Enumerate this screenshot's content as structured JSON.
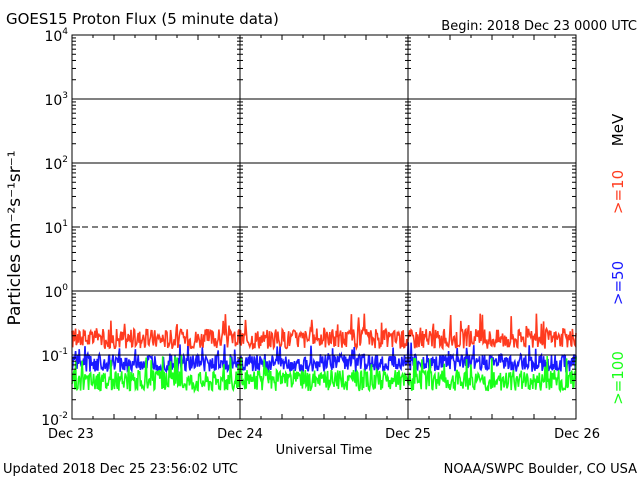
{
  "header": {
    "title": "GOES15 Proton Flux (5 minute data)",
    "begin": "Begin: 2018 Dec 23 0000 UTC"
  },
  "footer": {
    "updated": "Updated 2018 Dec 25 23:56:02 UTC",
    "credit": "NOAA/SWPC Boulder, CO USA"
  },
  "chart_data": {
    "type": "line",
    "title": "GOES15 Proton Flux (5 minute data)",
    "xlabel": "Universal Time",
    "ylabel": "Particles cm⁻²s⁻¹sr⁻¹",
    "yscale": "log",
    "ylim": [
      0.01,
      10000
    ],
    "y_ticks": [
      0.01,
      0.1,
      1,
      10,
      100,
      1000,
      10000
    ],
    "y_tick_labels": [
      {
        "base": "10",
        "exp": "-2"
      },
      {
        "base": "10",
        "exp": "-1"
      },
      {
        "base": "10",
        "exp": "0"
      },
      {
        "base": "10",
        "exp": "1"
      },
      {
        "base": "10",
        "exp": "2"
      },
      {
        "base": "10",
        "exp": "3"
      },
      {
        "base": "10",
        "exp": "4"
      }
    ],
    "x_tick_labels": [
      "Dec 23",
      "Dec 24",
      "Dec 25",
      "Dec 26"
    ],
    "xlim": [
      "2018-12-23 00:00",
      "2018-12-26 00:00"
    ],
    "grid": {
      "solid_levels": [
        1,
        100,
        1000
      ],
      "dashed_levels": [
        10
      ],
      "threshold_lines": [
        0.1
      ]
    },
    "unit_label": "MeV",
    "series": [
      {
        "name": ">=10",
        "color": "#ff3b1f",
        "median": 0.18,
        "min": 0.12,
        "max": 0.45
      },
      {
        "name": ">=50",
        "color": "#1a1aff",
        "median": 0.075,
        "min": 0.05,
        "max": 0.16
      },
      {
        "name": ">=100",
        "color": "#1aff1a",
        "median": 0.04,
        "min": 0.025,
        "max": 0.1
      }
    ]
  }
}
